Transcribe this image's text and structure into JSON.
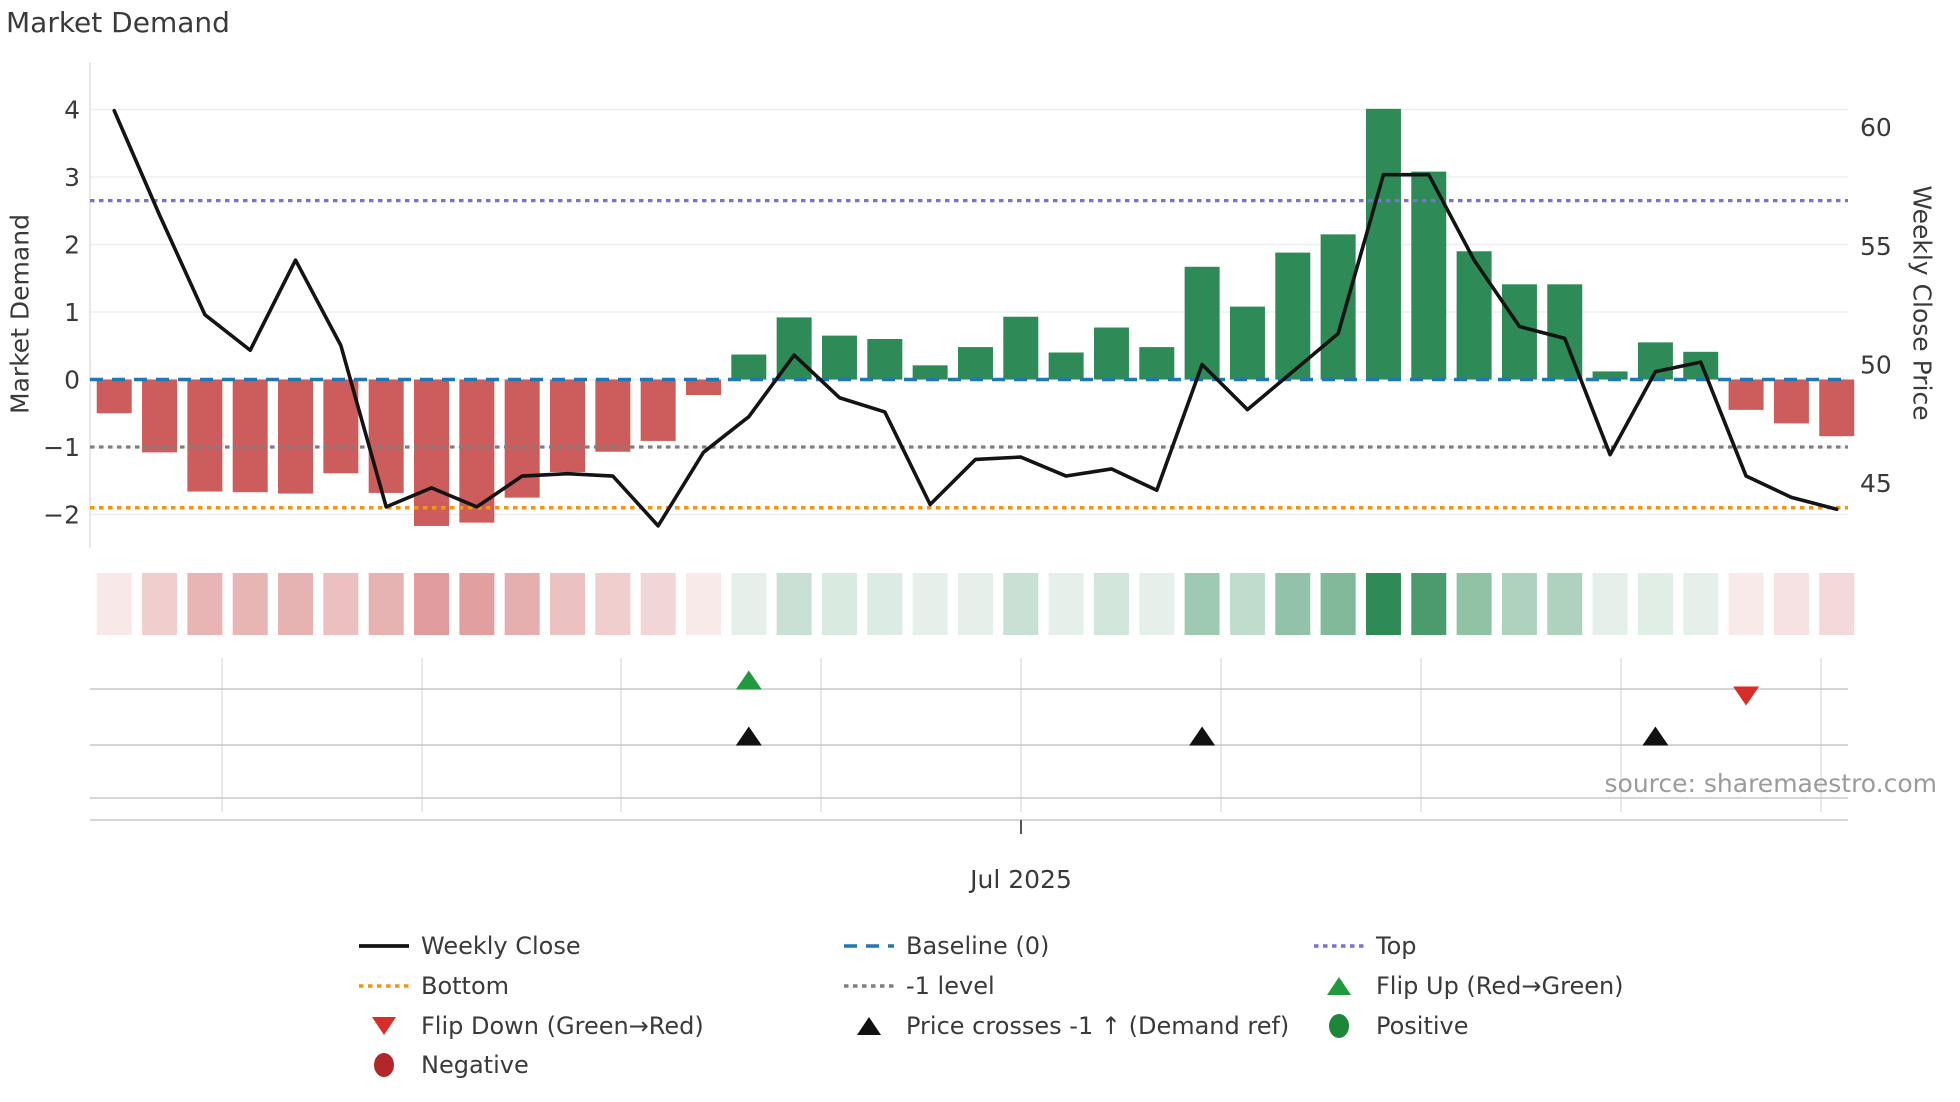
{
  "title": "Market Demand",
  "source_note": "source: sharemaestro.com",
  "colors": {
    "bar_negative": "#cd5c5c",
    "bar_positive": "#2e8b57",
    "weekly_close": "#141414",
    "baseline": "#1f77b4",
    "top_line": "#7d6fd8",
    "bottom_line": "#f5940e",
    "minus1_line": "#7f7f7f",
    "flip_up": "#219a3e",
    "flip_down": "#d92d2a",
    "positive_dot": "#1b8737",
    "negative_dot": "#b22828",
    "price_cross": "#111111",
    "grid": "#ececf1",
    "panel_line": "#c9c9c9",
    "month_grid": "#e2e2e6",
    "text": "#3a3a3a",
    "muted_text": "#9b9b9b"
  },
  "chart_data": {
    "type": "combo",
    "subtypes": [
      "bar",
      "line",
      "heatmap",
      "scatter-markers"
    ],
    "n_points": 39,
    "x_unit": "weeks",
    "x_tick_labels": [
      "Jul 2025"
    ],
    "left_axis": {
      "label": "Market Demand",
      "ticks": [
        4,
        3,
        2,
        1,
        0,
        -1,
        -2
      ],
      "range": [
        -2.7,
        4.35
      ]
    },
    "right_axis": {
      "label": "Weekly Close Price",
      "ticks": [
        60,
        55,
        50,
        45
      ],
      "range": [
        41.9,
        61.0
      ]
    },
    "demand_bars": [
      -0.5,
      -1.08,
      -1.66,
      -1.67,
      -1.69,
      -1.39,
      -1.68,
      -2.17,
      -2.12,
      -1.75,
      -1.37,
      -1.07,
      -0.91,
      -0.23,
      0.37,
      0.92,
      0.65,
      0.6,
      0.21,
      0.48,
      0.93,
      0.4,
      0.77,
      0.48,
      1.67,
      1.08,
      1.88,
      2.15,
      4.01,
      3.08,
      1.9,
      1.41,
      1.41,
      0.12,
      0.55,
      0.41,
      -0.45,
      -0.65,
      -0.84
    ],
    "weekly_close_price": [
      60.7,
      56.3,
      52.1,
      50.6,
      54.4,
      50.8,
      44.0,
      44.8,
      44.0,
      45.3,
      45.4,
      45.3,
      43.2,
      46.3,
      47.8,
      50.4,
      48.6,
      48.0,
      44.1,
      46.0,
      46.1,
      45.3,
      45.6,
      44.7,
      50.0,
      48.1,
      49.7,
      51.3,
      58.0,
      58.0,
      54.4,
      51.6,
      51.1,
      46.2,
      49.7,
      50.1,
      45.3,
      44.4,
      43.9
    ],
    "reference_lines": {
      "baseline": 0,
      "top": 2.65,
      "bottom": -1.9,
      "minus1_level": -1
    },
    "heat_strip_note": "one cell per week; red/green intensity proportional to |demand_bars| value",
    "markers": {
      "flip_up_index": [
        14
      ],
      "flip_down_index": [
        36
      ],
      "price_cross_index": [
        14,
        24,
        34
      ]
    },
    "legend_position": "bottom, 3 columns"
  },
  "legend": {
    "items": [
      {
        "label": "Weekly Close",
        "marker": "line",
        "color_key": "weekly_close",
        "row": 0,
        "col": 0
      },
      {
        "label": "Baseline (0)",
        "marker": "dashes",
        "color_key": "baseline",
        "row": 0,
        "col": 1
      },
      {
        "label": "Top",
        "marker": "dots",
        "color_key": "top_line",
        "row": 0,
        "col": 2
      },
      {
        "label": "Bottom",
        "marker": "dots",
        "color_key": "bottom_line",
        "row": 1,
        "col": 0
      },
      {
        "label": "-1 level",
        "marker": "dots",
        "color_key": "minus1_line",
        "row": 1,
        "col": 1
      },
      {
        "label": "Flip Up (Red→Green)",
        "marker": "tri-up",
        "color_key": "flip_up",
        "row": 1,
        "col": 2
      },
      {
        "label": "Flip Down (Green→Red)",
        "marker": "tri-down",
        "color_key": "flip_down",
        "row": 2,
        "col": 0
      },
      {
        "label": "Price crosses -1 ↑ (Demand ref)",
        "marker": "tri-up",
        "color_key": "price_cross",
        "row": 2,
        "col": 1
      },
      {
        "label": "Positive",
        "marker": "circle",
        "color_key": "positive_dot",
        "row": 2,
        "col": 2
      },
      {
        "label": "Negative",
        "marker": "circle",
        "color_key": "negative_dot",
        "row": 3,
        "col": 0
      }
    ]
  }
}
